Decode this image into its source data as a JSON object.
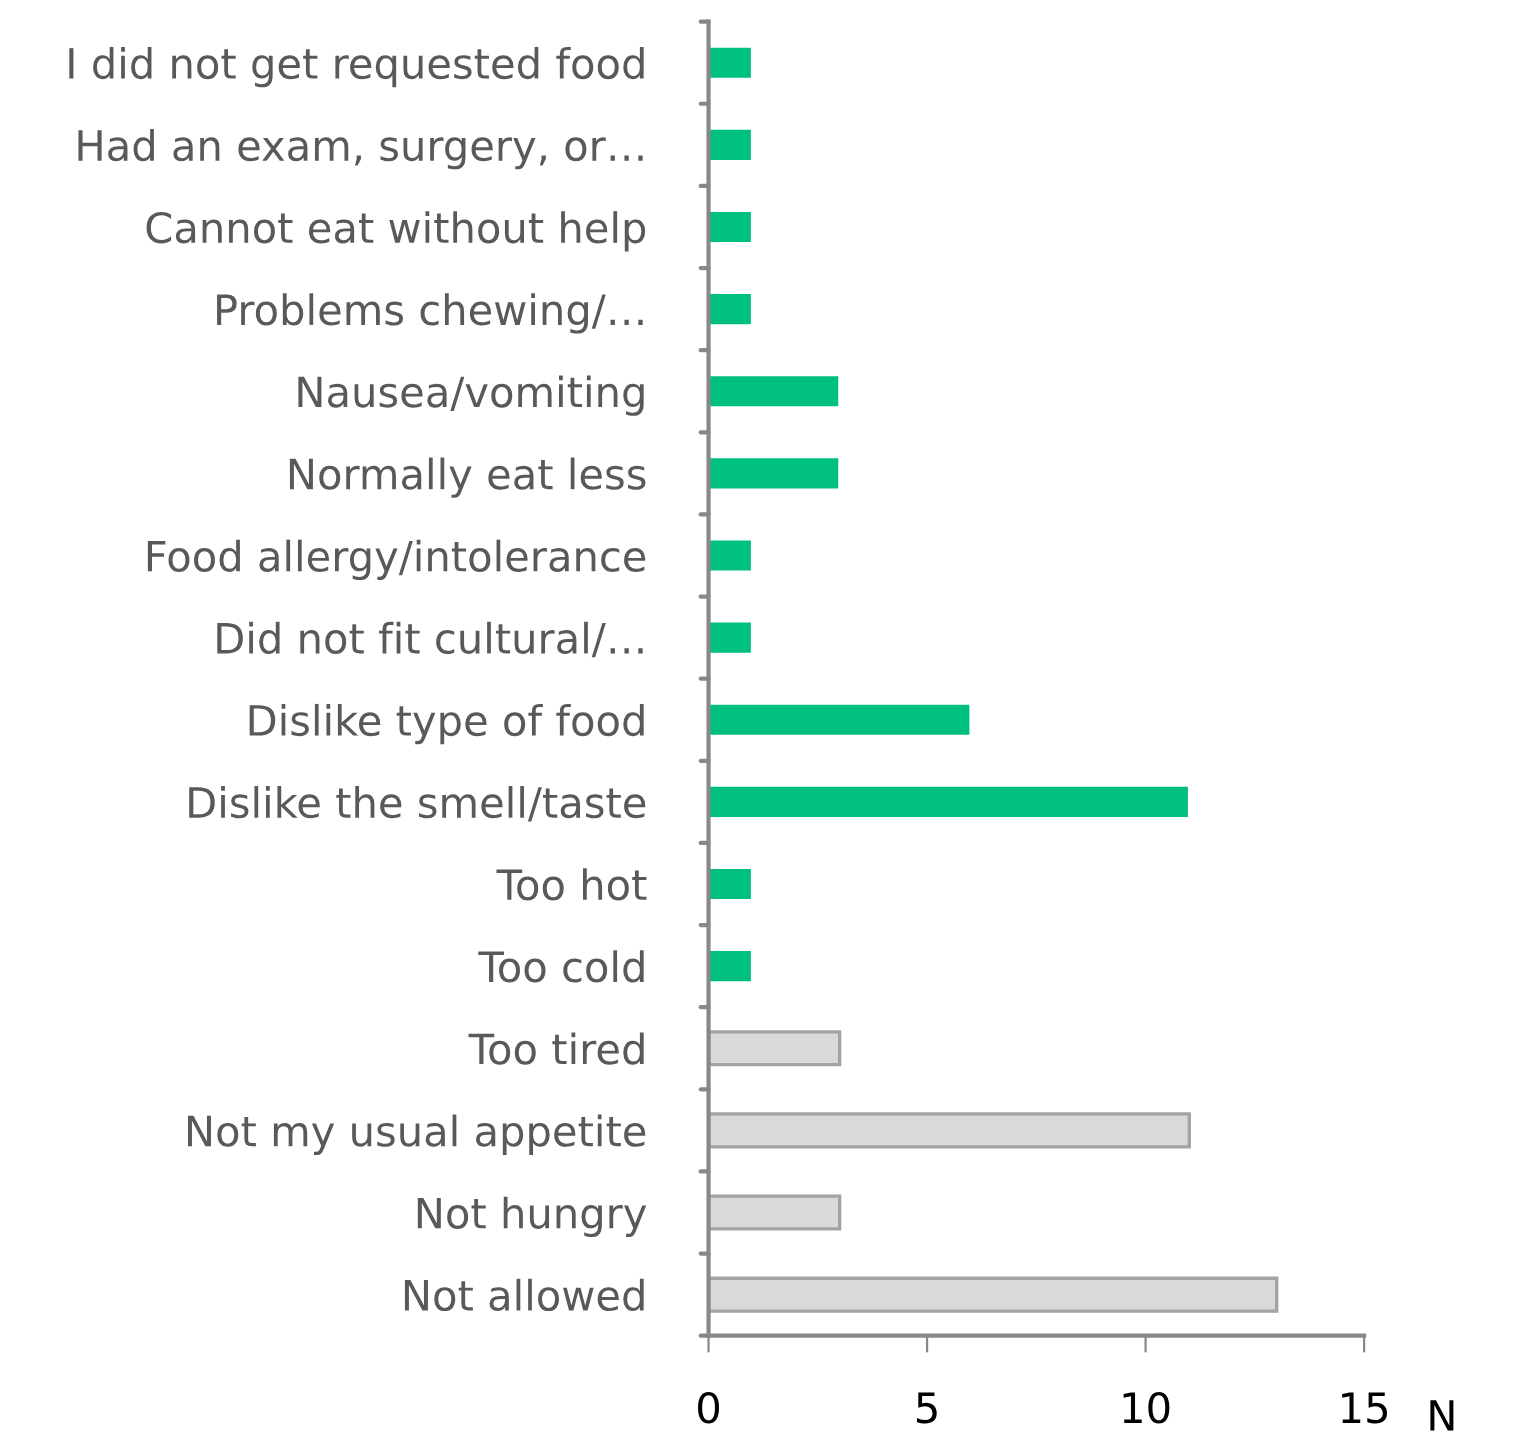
{
  "chart_data": {
    "type": "bar",
    "orientation": "horizontal",
    "xlabel": "N",
    "categories": [
      "I did not get requested food",
      "Had an exam, surgery, or…",
      "Cannot eat without help",
      "Problems chewing/…",
      "Nausea/vomiting",
      "Normally eat less",
      "Food allergy/intolerance",
      "Did not fit cultural/…",
      "Dislike type of food",
      "Dislike the smell/taste",
      "Too hot",
      "Too cold",
      "Too tired",
      "Not my usual appetite",
      "Not hungry",
      "Not allowed"
    ],
    "values": [
      1,
      1,
      1,
      1,
      3,
      3,
      1,
      1,
      6,
      11,
      1,
      1,
      3,
      11,
      3,
      13
    ],
    "colors": [
      "#00c07f",
      "#00c07f",
      "#00c07f",
      "#00c07f",
      "#00c07f",
      "#00c07f",
      "#00c07f",
      "#00c07f",
      "#00c07f",
      "#00c07f",
      "#00c07f",
      "#00c07f",
      "#d9d9d9",
      "#d9d9d9",
      "#d9d9d9",
      "#d9d9d9"
    ],
    "xlim": [
      0,
      15
    ],
    "xticks": [
      0,
      5,
      10,
      15
    ],
    "grid": false,
    "legend": false
  }
}
